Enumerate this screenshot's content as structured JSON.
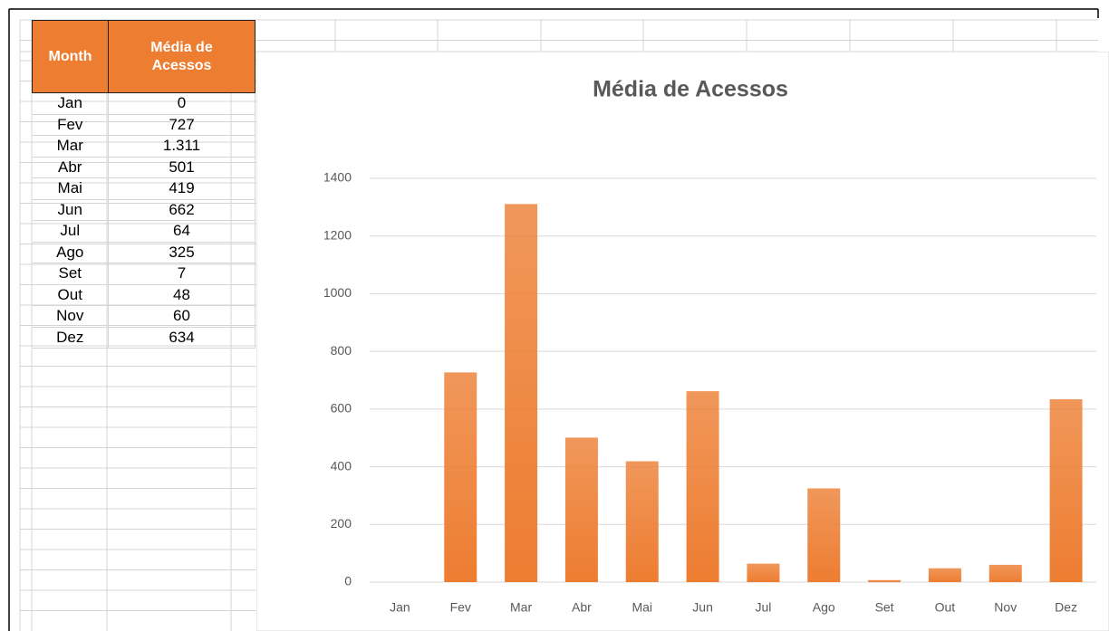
{
  "table": {
    "header": [
      "Month",
      "Média de Acessos"
    ],
    "rows": [
      [
        "Jan",
        "0"
      ],
      [
        "Fev",
        "727"
      ],
      [
        "Mar",
        "1.311"
      ],
      [
        "Abr",
        "501"
      ],
      [
        "Mai",
        "419"
      ],
      [
        "Jun",
        "662"
      ],
      [
        "Jul",
        "64"
      ],
      [
        "Ago",
        "325"
      ],
      [
        "Set",
        "7"
      ],
      [
        "Out",
        "48"
      ],
      [
        "Nov",
        "60"
      ],
      [
        "Dez",
        "634"
      ]
    ]
  },
  "chart_data": {
    "type": "bar",
    "title": "Média de Acessos",
    "categories": [
      "Jan",
      "Fev",
      "Mar",
      "Abr",
      "Mai",
      "Jun",
      "Jul",
      "Ago",
      "Set",
      "Out",
      "Nov",
      "Dez"
    ],
    "values": [
      0,
      727,
      1311,
      501,
      419,
      662,
      64,
      325,
      7,
      48,
      60,
      634
    ],
    "color": "#ed7d31",
    "ylim": [
      0,
      1400
    ],
    "yticks": [
      0,
      200,
      400,
      600,
      800,
      1000,
      1200,
      1400
    ],
    "grid": true
  }
}
